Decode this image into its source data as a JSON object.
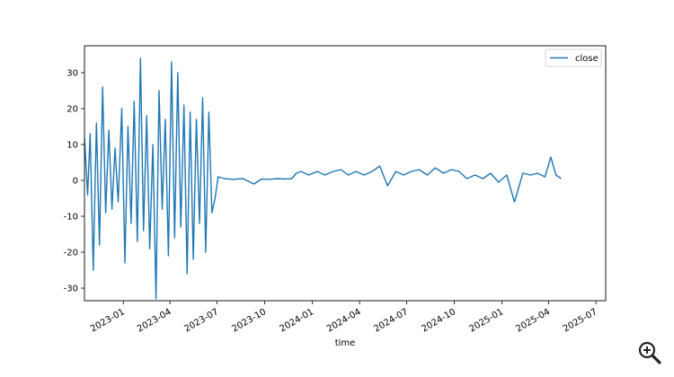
{
  "chart_data": {
    "type": "line",
    "title": "",
    "xlabel": "time",
    "ylabel": "",
    "legend": {
      "position": "top-right",
      "entries": [
        "close"
      ]
    },
    "grid": false,
    "xlim": [
      "2022-10-18",
      "2025-07-20"
    ],
    "ylim": [
      -33.5,
      37.5
    ],
    "x_ticks": [
      "2023-01",
      "2023-04",
      "2023-07",
      "2023-10",
      "2024-01",
      "2024-04",
      "2024-07",
      "2024-10",
      "2025-01",
      "2025-04",
      "2025-07"
    ],
    "y_ticks": [
      30,
      20,
      10,
      0,
      -10,
      -20,
      -30
    ],
    "series": [
      {
        "name": "close",
        "color": "#1f77b4",
        "x": [
          "2022-10-18",
          "2022-10-24",
          "2022-10-29",
          "2022-11-04",
          "2022-11-10",
          "2022-11-16",
          "2022-11-22",
          "2022-11-28",
          "2022-12-04",
          "2022-12-10",
          "2022-12-16",
          "2022-12-22",
          "2022-12-29",
          "2023-01-04",
          "2023-01-10",
          "2023-01-16",
          "2023-01-22",
          "2023-01-28",
          "2023-02-03",
          "2023-02-09",
          "2023-02-15",
          "2023-02-21",
          "2023-02-27",
          "2023-03-05",
          "2023-03-11",
          "2023-03-17",
          "2023-03-23",
          "2023-03-29",
          "2023-04-04",
          "2023-04-10",
          "2023-04-16",
          "2023-04-22",
          "2023-04-28",
          "2023-05-04",
          "2023-05-10",
          "2023-05-16",
          "2023-05-22",
          "2023-05-28",
          "2023-06-03",
          "2023-06-09",
          "2023-06-15",
          "2023-06-21",
          "2023-06-27",
          "2023-07-03",
          "2023-07-15",
          "2023-08-01",
          "2023-08-20",
          "2023-09-10",
          "2023-09-25",
          "2023-10-10",
          "2023-10-25",
          "2023-11-10",
          "2023-11-22",
          "2023-12-01",
          "2023-12-10",
          "2023-12-25",
          "2024-01-10",
          "2024-01-25",
          "2024-02-10",
          "2024-02-25",
          "2024-03-10",
          "2024-03-25",
          "2024-04-10",
          "2024-04-25",
          "2024-05-10",
          "2024-05-25",
          "2024-06-10",
          "2024-06-25",
          "2024-07-10",
          "2024-07-25",
          "2024-08-10",
          "2024-08-25",
          "2024-09-10",
          "2024-09-25",
          "2024-10-10",
          "2024-10-25",
          "2024-11-10",
          "2024-11-25",
          "2024-12-10",
          "2024-12-25",
          "2025-01-10",
          "2025-01-25",
          "2025-02-10",
          "2025-02-25",
          "2025-03-10",
          "2025-03-25",
          "2025-04-05",
          "2025-04-15",
          "2025-04-25"
        ],
        "values": [
          12,
          -4,
          13,
          -25,
          16,
          -18,
          26,
          -9,
          14,
          -8,
          9,
          -6,
          20,
          -23,
          15,
          -12,
          22,
          -17,
          34,
          -14,
          18,
          -19,
          10,
          -33,
          25,
          -8,
          17,
          -21,
          33,
          -16,
          30,
          -13,
          21,
          -26,
          19,
          -22,
          17,
          -12,
          23,
          -20,
          19,
          -9,
          -5,
          1,
          0.5,
          0.3,
          0.5,
          -1,
          0.4,
          0.3,
          0.5,
          0.4,
          0.5,
          2,
          2.5,
          1.5,
          2.5,
          1.5,
          2.5,
          3,
          1.5,
          2.5,
          1.5,
          2.5,
          4,
          -1.5,
          2.5,
          1.5,
          2.5,
          3,
          1.5,
          3.5,
          2,
          3,
          2.5,
          0.5,
          1.5,
          0.5,
          2,
          -0.5,
          1.5,
          -6,
          2,
          1.5,
          2,
          1,
          6.5,
          1.5,
          0.5
        ]
      }
    ]
  },
  "ui": {
    "zoom_icon": "magnifier-plus-icon"
  }
}
